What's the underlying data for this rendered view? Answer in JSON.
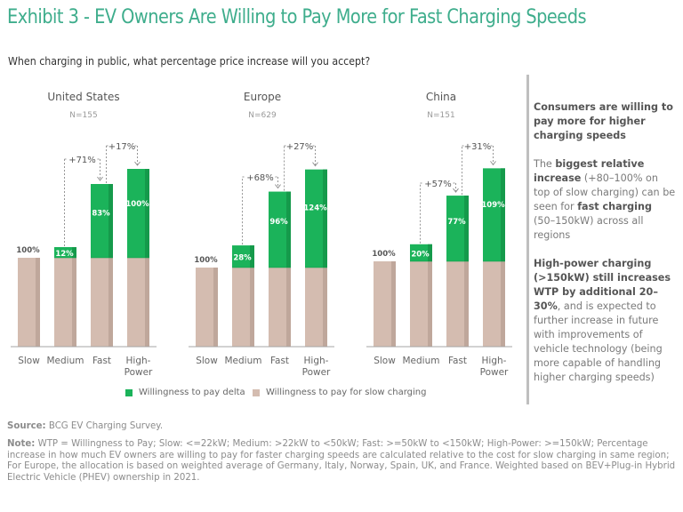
{
  "header": {
    "title": "Exhibit 3 - EV Owners Are Willing to Pay More for Fast Charging Speeds",
    "subtitle": "When charging in public, what percentage price increase will you accept?"
  },
  "colors": {
    "title": "#3EAD8C",
    "delta": "#1BB35A",
    "delta_shade": "#159A4B",
    "base": "#D4BCB0",
    "base_shade": "#BFA79B",
    "axis": "#A6A6A6",
    "annotation": "#8C8C8C"
  },
  "chart_data": [
    {
      "type": "bar",
      "stacked": true,
      "title": "United States",
      "sample": "N=155",
      "categories": [
        "Slow",
        "Medium",
        "Fast",
        "High-Power"
      ],
      "series": [
        {
          "name": "Willingness to pay for slow charging",
          "values": [
            100,
            100,
            100,
            100
          ]
        },
        {
          "name": "Willingness to pay delta",
          "values": [
            0,
            12,
            83,
            100
          ]
        }
      ],
      "top_label": "100%",
      "delta_labels": [
        "",
        "12%",
        "83%",
        "100%"
      ],
      "annotations": [
        {
          "from": "Medium",
          "to": "Fast",
          "label": "+71%"
        },
        {
          "from": "Fast",
          "to": "High-Power",
          "label": "+17%"
        }
      ]
    },
    {
      "type": "bar",
      "stacked": true,
      "title": "Europe",
      "sample": "N=629",
      "categories": [
        "Slow",
        "Medium",
        "Fast",
        "High-Power"
      ],
      "series": [
        {
          "name": "Willingness to pay for slow charging",
          "values": [
            100,
            100,
            100,
            100
          ]
        },
        {
          "name": "Willingness to pay delta",
          "values": [
            0,
            28,
            96,
            124
          ]
        }
      ],
      "top_label": "100%",
      "delta_labels": [
        "",
        "28%",
        "96%",
        "124%"
      ],
      "annotations": [
        {
          "from": "Medium",
          "to": "Fast",
          "label": "+68%"
        },
        {
          "from": "Fast",
          "to": "High-Power",
          "label": "+27%"
        }
      ]
    },
    {
      "type": "bar",
      "stacked": true,
      "title": "China",
      "sample": "N=151",
      "categories": [
        "Slow",
        "Medium",
        "Fast",
        "High-Power"
      ],
      "series": [
        {
          "name": "Willingness to pay for slow charging",
          "values": [
            100,
            100,
            100,
            100
          ]
        },
        {
          "name": "Willingness to pay delta",
          "values": [
            0,
            20,
            77,
            109
          ]
        }
      ],
      "top_label": "100%",
      "delta_labels": [
        "",
        "20%",
        "77%",
        "109%"
      ],
      "annotations": [
        {
          "from": "Medium",
          "to": "Fast",
          "label": "+57%"
        },
        {
          "from": "Fast",
          "to": "High-Power",
          "label": "+31%"
        }
      ]
    }
  ],
  "category_label_lines": [
    [
      "Slow"
    ],
    [
      "Medium"
    ],
    [
      "Fast"
    ],
    [
      "High-",
      "Power"
    ]
  ],
  "legend": {
    "delta": "Willingness to pay delta",
    "base": "Willingness to pay for slow charging"
  },
  "sidebar": {
    "headline": "Consumers are willing to pay more for higher charging speeds",
    "p1": {
      "t1": "The ",
      "b1": "biggest relative increase",
      "t2": " (+80–100% on top of slow charging) can be seen for ",
      "b2": "fast charging",
      "t3": " (50–150kW) across all regions"
    },
    "p2": {
      "b1": "High-power charging (>150kW) still increases WTP by additional 20–30%",
      "t1": ", and is expected to further increase in future with improvements of vehicle technology (being more capable of handling higher charging speeds)"
    }
  },
  "footer": {
    "source_label": "Source:",
    "source_text": " BCG EV Charging Survey.",
    "note_label": "Note:",
    "note_text": " WTP = Willingness to Pay; Slow: <=22kW; Medium: >22kW to <50kW; Fast: >=50kW to <150kW; High-Power: >=150kW; Percentage increase in how much EV owners are willing to pay for faster charging speeds are calculated relative to the cost for slow charging in same region; For Europe, the allocation is based on weighted average of Germany, Italy, Norway, Spain, UK, and France. Weighted based on BEV+Plug-in Hybrid Electric Vehicle (PHEV) ownership in 2021."
  }
}
